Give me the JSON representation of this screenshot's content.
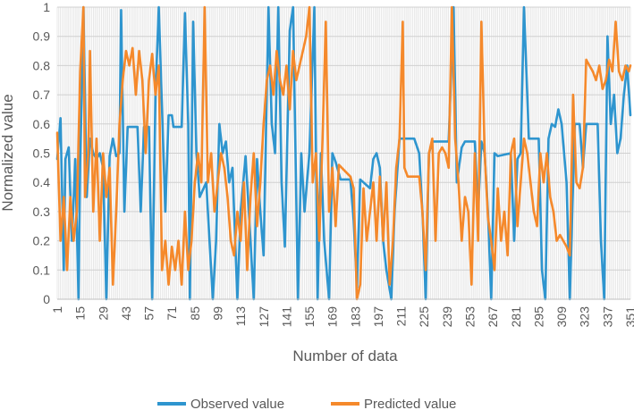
{
  "chart_data": {
    "type": "line",
    "title": "",
    "xlabel": "Number of data",
    "ylabel": "Normalized value",
    "xlim": [
      1,
      351
    ],
    "ylim": [
      0,
      1
    ],
    "x_ticks": [
      1,
      15,
      29,
      43,
      57,
      71,
      85,
      99,
      113,
      127,
      141,
      155,
      169,
      183,
      197,
      211,
      225,
      239,
      253,
      267,
      281,
      295,
      309,
      323,
      337,
      351
    ],
    "y_ticks": [
      0,
      0.1,
      0.2,
      0.3,
      0.4,
      0.5,
      0.6,
      0.7,
      0.8,
      0.9,
      1
    ],
    "y_tick_labels": [
      "0",
      "0.1",
      "0.2",
      "0.3",
      "0.4",
      "0.5",
      "0.6",
      "0.7",
      "0.8",
      "0.9",
      "1"
    ],
    "grid": true,
    "legend_position": "bottom",
    "series": [
      {
        "name": "Observed value",
        "color": "#2E95CF",
        "points": [
          [
            1,
            0.48
          ],
          [
            3,
            0.62
          ],
          [
            5,
            0.1
          ],
          [
            6,
            0.48
          ],
          [
            8,
            0.52
          ],
          [
            10,
            0.2
          ],
          [
            12,
            0.48
          ],
          [
            14,
            0.0
          ],
          [
            15,
            0.47
          ],
          [
            16,
            0.7
          ],
          [
            17,
            1.0
          ],
          [
            19,
            0.35
          ],
          [
            21,
            0.55
          ],
          [
            23,
            0.5
          ],
          [
            25,
            0.48
          ],
          [
            27,
            0.5
          ],
          [
            29,
            0.45
          ],
          [
            31,
            0.0
          ],
          [
            33,
            0.49
          ],
          [
            35,
            0.55
          ],
          [
            37,
            0.49
          ],
          [
            39,
            0.5
          ],
          [
            40,
            0.99
          ],
          [
            42,
            0.3
          ],
          [
            44,
            0.59
          ],
          [
            50,
            0.59
          ],
          [
            52,
            0.3
          ],
          [
            54,
            0.59
          ],
          [
            57,
            0.59
          ],
          [
            59,
            0.0
          ],
          [
            61,
            0.7
          ],
          [
            63,
            1.0
          ],
          [
            65,
            0.65
          ],
          [
            67,
            0.3
          ],
          [
            69,
            0.63
          ],
          [
            71,
            0.63
          ],
          [
            72,
            0.59
          ],
          [
            77,
            0.59
          ],
          [
            79,
            0.98
          ],
          [
            81,
            0.6
          ],
          [
            82,
            0.0
          ],
          [
            84,
            0.95
          ],
          [
            86,
            0.5
          ],
          [
            88,
            0.35
          ],
          [
            92,
            0.4
          ],
          [
            94,
            0.2
          ],
          [
            96,
            0.0
          ],
          [
            98,
            0.2
          ],
          [
            100,
            0.6
          ],
          [
            102,
            0.5
          ],
          [
            104,
            0.54
          ],
          [
            106,
            0.4
          ],
          [
            108,
            0.45
          ],
          [
            111,
            0.0
          ],
          [
            113,
            0.3
          ],
          [
            116,
            0.49
          ],
          [
            118,
            0.3
          ],
          [
            121,
            0.0
          ],
          [
            123,
            0.48
          ],
          [
            125,
            0.3
          ],
          [
            127,
            0.15
          ],
          [
            130,
            1.0
          ],
          [
            132,
            0.6
          ],
          [
            134,
            0.5
          ],
          [
            136,
            1.0
          ],
          [
            138,
            0.4
          ],
          [
            140,
            0.18
          ],
          [
            143,
            0.92
          ],
          [
            145,
            1.0
          ],
          [
            148,
            0.0
          ],
          [
            150,
            0.5
          ],
          [
            152,
            0.3
          ],
          [
            155,
            0.5
          ],
          [
            158,
            1.0
          ],
          [
            160,
            0.0
          ],
          [
            162,
            0.5
          ],
          [
            164,
            0.2
          ],
          [
            167,
            0.0
          ],
          [
            169,
            0.5
          ],
          [
            171,
            0.47
          ],
          [
            174,
            0.41
          ],
          [
            180,
            0.41
          ],
          [
            182,
            0.27
          ],
          [
            184,
            0.04
          ],
          [
            186,
            0.41
          ],
          [
            188,
            0.4
          ],
          [
            190,
            0.39
          ],
          [
            192,
            0.38
          ],
          [
            194,
            0.48
          ],
          [
            196,
            0.5
          ],
          [
            198,
            0.45
          ],
          [
            200,
            0.2
          ],
          [
            202,
            0.1
          ],
          [
            205,
            0.0
          ],
          [
            207,
            0.3
          ],
          [
            210,
            0.55
          ],
          [
            215,
            0.55
          ],
          [
            219,
            0.55
          ],
          [
            222,
            0.5
          ],
          [
            224,
            0.3
          ],
          [
            226,
            0.0
          ],
          [
            228,
            0.5
          ],
          [
            230,
            0.54
          ],
          [
            237,
            0.54
          ],
          [
            240,
            0.54
          ],
          [
            243,
            1.0
          ],
          [
            245,
            0.4
          ],
          [
            248,
            0.52
          ],
          [
            250,
            0.54
          ],
          [
            256,
            0.54
          ],
          [
            258,
            0.3
          ],
          [
            260,
            0.54
          ],
          [
            262,
            0.5
          ],
          [
            264,
            0.3
          ],
          [
            266,
            0.0
          ],
          [
            268,
            0.5
          ],
          [
            270,
            0.49
          ],
          [
            278,
            0.5
          ],
          [
            280,
            0.2
          ],
          [
            282,
            0.48
          ],
          [
            284,
            0.5
          ],
          [
            286,
            1.0
          ],
          [
            289,
            0.55
          ],
          [
            295,
            0.55
          ],
          [
            297,
            0.1
          ],
          [
            299,
            0.0
          ],
          [
            301,
            0.55
          ],
          [
            303,
            0.6
          ],
          [
            305,
            0.59
          ],
          [
            307,
            0.65
          ],
          [
            309,
            0.6
          ],
          [
            312,
            0.4
          ],
          [
            314,
            0.0
          ],
          [
            317,
            0.6
          ],
          [
            320,
            0.6
          ],
          [
            322,
            0.45
          ],
          [
            324,
            0.6
          ],
          [
            331,
            0.6
          ],
          [
            333,
            0.2
          ],
          [
            335,
            0.0
          ],
          [
            337,
            0.9
          ],
          [
            339,
            0.6
          ],
          [
            341,
            0.7
          ],
          [
            343,
            0.5
          ],
          [
            345,
            0.55
          ],
          [
            347,
            0.7
          ],
          [
            349,
            0.8
          ],
          [
            351,
            0.63
          ]
        ]
      },
      {
        "name": "Predicted value",
        "color": "#F5892B",
        "points": [
          [
            1,
            0.57
          ],
          [
            3,
            0.2
          ],
          [
            5,
            0.35
          ],
          [
            7,
            0.1
          ],
          [
            9,
            0.35
          ],
          [
            11,
            0.2
          ],
          [
            13,
            0.3
          ],
          [
            15,
            0.78
          ],
          [
            17,
            1.0
          ],
          [
            18,
            0.35
          ],
          [
            20,
            0.5
          ],
          [
            21,
            0.85
          ],
          [
            23,
            0.3
          ],
          [
            25,
            0.55
          ],
          [
            27,
            0.2
          ],
          [
            29,
            0.5
          ],
          [
            31,
            0.35
          ],
          [
            33,
            0.45
          ],
          [
            35,
            0.05
          ],
          [
            37,
            0.3
          ],
          [
            39,
            0.6
          ],
          [
            41,
            0.75
          ],
          [
            43,
            0.85
          ],
          [
            45,
            0.8
          ],
          [
            47,
            0.86
          ],
          [
            49,
            0.7
          ],
          [
            51,
            0.85
          ],
          [
            53,
            0.75
          ],
          [
            55,
            0.5
          ],
          [
            57,
            0.75
          ],
          [
            59,
            0.84
          ],
          [
            61,
            0.7
          ],
          [
            63,
            0.8
          ],
          [
            65,
            0.1
          ],
          [
            67,
            0.2
          ],
          [
            69,
            0.05
          ],
          [
            71,
            0.18
          ],
          [
            73,
            0.1
          ],
          [
            75,
            0.2
          ],
          [
            77,
            0.05
          ],
          [
            79,
            0.3
          ],
          [
            81,
            0.1
          ],
          [
            83,
            0.2
          ],
          [
            85,
            0.4
          ],
          [
            87,
            0.5
          ],
          [
            89,
            0.4
          ],
          [
            91,
            1.0
          ],
          [
            93,
            0.4
          ],
          [
            95,
            0.5
          ],
          [
            97,
            0.3
          ],
          [
            99,
            0.4
          ],
          [
            101,
            0.5
          ],
          [
            103,
            0.45
          ],
          [
            105,
            0.35
          ],
          [
            107,
            0.2
          ],
          [
            109,
            0.15
          ],
          [
            111,
            0.3
          ],
          [
            113,
            0.2
          ],
          [
            115,
            0.4
          ],
          [
            117,
            0.1
          ],
          [
            119,
            0.35
          ],
          [
            121,
            0.5
          ],
          [
            123,
            0.25
          ],
          [
            125,
            0.4
          ],
          [
            127,
            0.6
          ],
          [
            129,
            0.75
          ],
          [
            131,
            0.8
          ],
          [
            133,
            0.7
          ],
          [
            135,
            0.85
          ],
          [
            137,
            0.75
          ],
          [
            139,
            0.7
          ],
          [
            141,
            0.8
          ],
          [
            143,
            0.65
          ],
          [
            145,
            0.85
          ],
          [
            147,
            0.75
          ],
          [
            149,
            0.8
          ],
          [
            151,
            0.85
          ],
          [
            153,
            0.9
          ],
          [
            155,
            1.0
          ],
          [
            157,
            0.4
          ],
          [
            159,
            0.5
          ],
          [
            161,
            0.2
          ],
          [
            163,
            0.55
          ],
          [
            165,
            0.95
          ],
          [
            167,
            0.3
          ],
          [
            169,
            0.45
          ],
          [
            171,
            0.25
          ],
          [
            173,
            0.46
          ],
          [
            180,
            0.42
          ],
          [
            182,
            0.38
          ],
          [
            184,
            0.0
          ],
          [
            186,
            0.05
          ],
          [
            188,
            0.38
          ],
          [
            190,
            0.2
          ],
          [
            192,
            0.3
          ],
          [
            194,
            0.4
          ],
          [
            196,
            0.2
          ],
          [
            198,
            0.42
          ],
          [
            200,
            0.2
          ],
          [
            202,
            0.4
          ],
          [
            204,
            0.05
          ],
          [
            206,
            0.2
          ],
          [
            208,
            0.45
          ],
          [
            210,
            0.55
          ],
          [
            212,
            0.95
          ],
          [
            213,
            0.45
          ],
          [
            215,
            0.42
          ],
          [
            222,
            0.42
          ],
          [
            224,
            0.3
          ],
          [
            226,
            0.1
          ],
          [
            228,
            0.5
          ],
          [
            230,
            0.55
          ],
          [
            232,
            0.2
          ],
          [
            234,
            0.5
          ],
          [
            236,
            0.52
          ],
          [
            238,
            0.5
          ],
          [
            240,
            0.45
          ],
          [
            242,
            1.0
          ],
          [
            244,
            0.55
          ],
          [
            246,
            0.4
          ],
          [
            248,
            0.2
          ],
          [
            250,
            0.35
          ],
          [
            252,
            0.3
          ],
          [
            254,
            0.05
          ],
          [
            256,
            0.5
          ],
          [
            258,
            0.2
          ],
          [
            260,
            0.95
          ],
          [
            262,
            0.5
          ],
          [
            264,
            0.28
          ],
          [
            266,
            0.2
          ],
          [
            268,
            0.1
          ],
          [
            270,
            0.38
          ],
          [
            272,
            0.2
          ],
          [
            274,
            0.3
          ],
          [
            276,
            0.15
          ],
          [
            278,
            0.5
          ],
          [
            280,
            0.55
          ],
          [
            282,
            0.25
          ],
          [
            284,
            0.4
          ],
          [
            286,
            0.55
          ],
          [
            288,
            0.5
          ],
          [
            290,
            0.4
          ],
          [
            292,
            0.3
          ],
          [
            294,
            0.25
          ],
          [
            296,
            0.5
          ],
          [
            298,
            0.4
          ],
          [
            300,
            0.5
          ],
          [
            302,
            0.35
          ],
          [
            304,
            0.3
          ],
          [
            306,
            0.2
          ],
          [
            308,
            0.22
          ],
          [
            312,
            0.18
          ],
          [
            314,
            0.15
          ],
          [
            316,
            0.7
          ],
          [
            318,
            0.4
          ],
          [
            320,
            0.38
          ],
          [
            322,
            0.45
          ],
          [
            324,
            0.82
          ],
          [
            326,
            0.8
          ],
          [
            328,
            0.78
          ],
          [
            330,
            0.75
          ],
          [
            332,
            0.8
          ],
          [
            334,
            0.72
          ],
          [
            336,
            0.75
          ],
          [
            338,
            0.82
          ],
          [
            340,
            0.78
          ],
          [
            342,
            0.95
          ],
          [
            344,
            0.78
          ],
          [
            346,
            0.75
          ],
          [
            348,
            0.8
          ],
          [
            350,
            0.78
          ],
          [
            351,
            0.8
          ]
        ]
      }
    ]
  }
}
